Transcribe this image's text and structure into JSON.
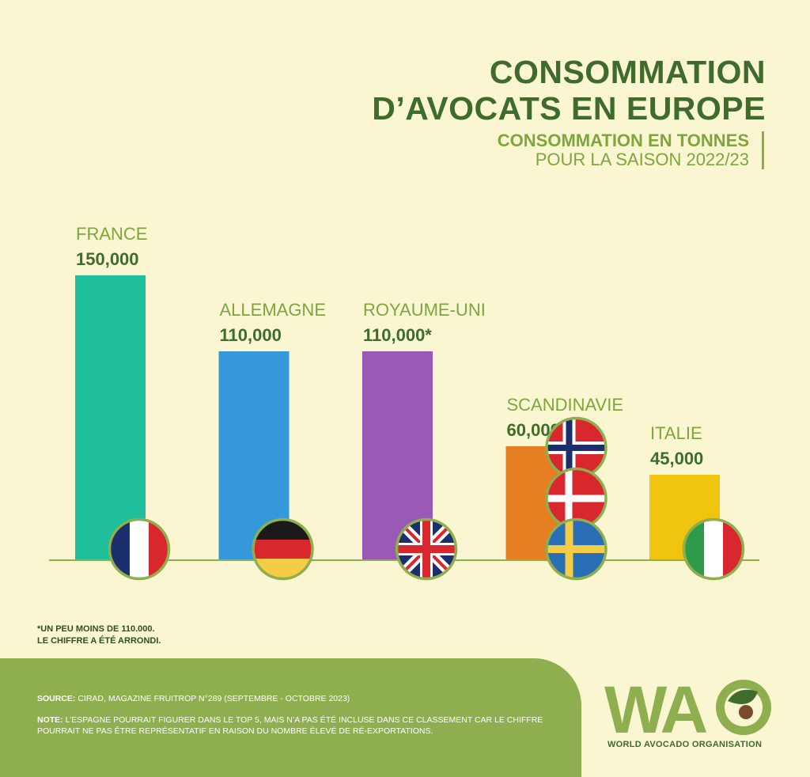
{
  "header": {
    "title_line1": "CONSOMMATION",
    "title_line2": "D’AVOCATS EN EUROPE",
    "subtitle_bold": "CONSOMMATION EN TONNES",
    "subtitle_regular": "POUR LA SAISON 2022/23"
  },
  "chart_data": {
    "type": "bar",
    "categories": [
      "FRANCE",
      "ALLEMAGNE",
      "ROYAUME-UNI",
      "SCANDINAVIE",
      "ITALIE"
    ],
    "values": [
      150000,
      110000,
      110000,
      60000,
      45000
    ],
    "value_labels": [
      "150,000",
      "110,000",
      "110,000*",
      "60,000",
      "45,000"
    ],
    "colors": [
      "#1fbf9b",
      "#3498db",
      "#9b59b6",
      "#e67e22",
      "#f1c40f"
    ],
    "title": "",
    "xlabel": "",
    "ylabel": "",
    "ylim": [
      0,
      150000
    ],
    "grid": false,
    "flags": [
      "france-flag",
      "germany-flag",
      "uk-flag",
      "norway-flag|denmark-flag|sweden-flag",
      "italy-flag"
    ]
  },
  "colors": {
    "background": "#fbf6d2",
    "dark_green": "#3f6b2c",
    "light_green": "#8eae4f"
  },
  "footnote": {
    "line1": "*UN PEU MOINS DE 110.000.",
    "line2": "LE CHIFFRE A ÉTÉ ARRONDI."
  },
  "footer": {
    "source_label": "SOURCE:",
    "source_text": " CIRAD, MAGAZINE FRUITROP N°289 (SEPTEMBRE - OCTOBRE 2023)",
    "note_label": "NOTE:",
    "note_text": " L’ESPAGNE POURRAIT FIGURER DANS LE TOP 5, MAIS N’A PAS ÉTÉ INCLUSE DANS CE CLASSEMENT CAR LE CHIFFRE POURRAIT NE PAS ÊTRE REPRÉSENTATIF EN RAISON DU NOMBRE ÉLEVÉ DE RÉ-EXPORTATIONS."
  },
  "logo": {
    "text": "WA",
    "subtitle": "WORLD AVOCADO ORGANISATION"
  }
}
